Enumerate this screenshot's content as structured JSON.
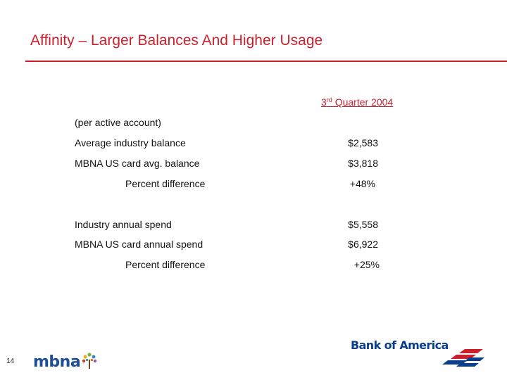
{
  "slide": {
    "title": "Affinity – Larger Balances And Higher Usage",
    "page_number": "14"
  },
  "column_header": {
    "ordinal": "3",
    "suffix": "rd",
    "rest": " Quarter 2004"
  },
  "rows": [
    {
      "label": "(per active account)",
      "value": ""
    },
    {
      "label": "Average industry balance",
      "value": "$2,583"
    },
    {
      "label": "MBNA US card avg. balance",
      "value": "$3,818"
    },
    {
      "label": "Percent difference",
      "value": "+48%"
    },
    {
      "label": "Industry annual spend",
      "value": "$5,558"
    },
    {
      "label": "MBNA US card annual spend",
      "value": "$6,922"
    },
    {
      "label": "Percent difference",
      "value": "+25%"
    }
  ],
  "logos": {
    "mbna": "mbna",
    "bank_of_america": "Bank of America"
  },
  "colors": {
    "accent_red": "#cc1f2d",
    "brand_blue": "#0b3f8c"
  }
}
